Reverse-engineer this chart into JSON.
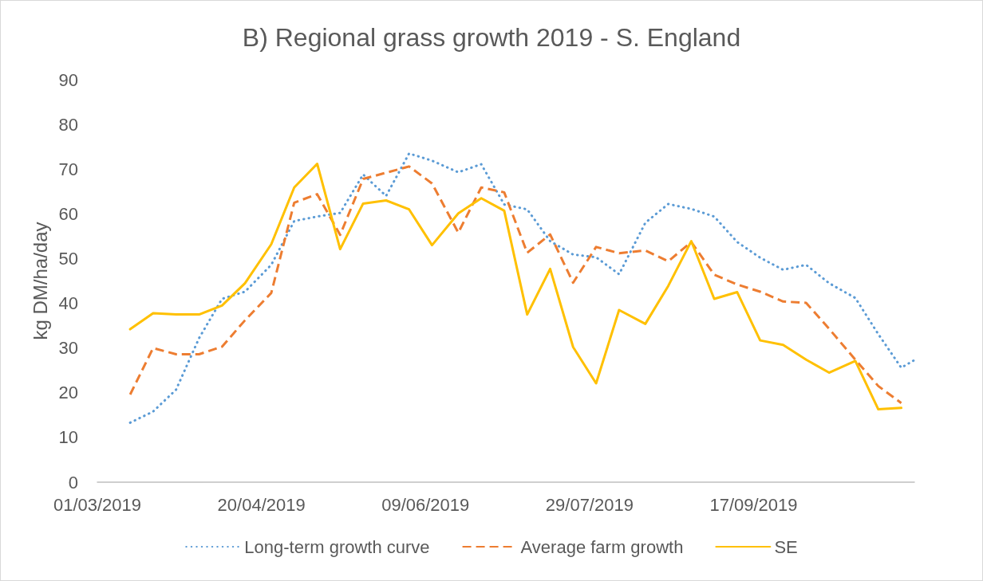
{
  "chart_data": {
    "type": "line",
    "title": "B) Regional grass growth 2019 - S. England",
    "ylabel": "kg DM/ha/day",
    "x": [
      "2019-03-11",
      "2019-03-18",
      "2019-03-25",
      "2019-04-01",
      "2019-04-08",
      "2019-04-15",
      "2019-04-23",
      "2019-04-30",
      "2019-05-07",
      "2019-05-14",
      "2019-05-21",
      "2019-05-28",
      "2019-06-04",
      "2019-06-11",
      "2019-06-19",
      "2019-06-26",
      "2019-07-03",
      "2019-07-10",
      "2019-07-17",
      "2019-07-24",
      "2019-07-31",
      "2019-08-07",
      "2019-08-15",
      "2019-08-22",
      "2019-08-29",
      "2019-09-05",
      "2019-09-12",
      "2019-09-19",
      "2019-09-26",
      "2019-10-03",
      "2019-10-10",
      "2019-10-18",
      "2019-10-25",
      "2019-11-01"
    ],
    "series": [
      {
        "name": "Long-term growth curve",
        "color": "#5b9bd5",
        "line_style": "dotted",
        "x": [
          "2019-03-11",
          "2019-03-18",
          "2019-03-25",
          "2019-04-01",
          "2019-04-08",
          "2019-04-15",
          "2019-04-23",
          "2019-04-30",
          "2019-05-07",
          "2019-05-14",
          "2019-05-21",
          "2019-05-28",
          "2019-06-04",
          "2019-06-11",
          "2019-06-19",
          "2019-06-26",
          "2019-07-03",
          "2019-07-10",
          "2019-07-17",
          "2019-07-24",
          "2019-07-31",
          "2019-08-07",
          "2019-08-15",
          "2019-08-22",
          "2019-08-29",
          "2019-09-05",
          "2019-09-12",
          "2019-09-19",
          "2019-09-26",
          "2019-10-03",
          "2019-10-10",
          "2019-10-18",
          "2019-10-25",
          "2019-11-01",
          "2019-11-05"
        ],
        "values": [
          13.3,
          15.8,
          20.7,
          32.2,
          41.0,
          42.6,
          48.6,
          58.4,
          59.4,
          60.2,
          68.8,
          64.0,
          73.5,
          71.9,
          69.3,
          71.1,
          62.1,
          61.0,
          53.9,
          50.9,
          50.3,
          46.5,
          58.0,
          62.2,
          61.1,
          59.4,
          53.7,
          50.2,
          47.5,
          48.6,
          44.5,
          41.2,
          33.1,
          25.6,
          27.3
        ]
      },
      {
        "name": "Average farm growth",
        "color": "#ed7d31",
        "line_style": "dashed",
        "values": [
          19.6,
          30.0,
          28.6,
          28.6,
          30.3,
          36.2,
          42.3,
          62.5,
          64.4,
          55.3,
          67.8,
          69.2,
          70.6,
          66.8,
          55.8,
          65.9,
          64.8,
          51.3,
          55.4,
          44.6,
          52.6,
          51.2,
          51.8,
          49.4,
          53.7,
          46.4,
          44.2,
          42.6,
          40.4,
          40.1,
          34.3,
          27.4,
          21.5,
          17.7
        ]
      },
      {
        "name": "SE",
        "color": "#ffc000",
        "line_style": "solid",
        "values": [
          34.2,
          37.8,
          37.5,
          37.5,
          39.5,
          44.5,
          53.2,
          65.9,
          71.2,
          52.1,
          62.3,
          63.0,
          61.0,
          53.0,
          60.1,
          63.5,
          60.7,
          37.5,
          47.7,
          30.2,
          22.1,
          38.5,
          35.4,
          43.9,
          53.9,
          41.0,
          42.5,
          31.7,
          30.7,
          27.4,
          24.5,
          27.1,
          16.3,
          16.6
        ]
      }
    ],
    "xlim": [
      "2019-03-01",
      "2019-11-05"
    ],
    "xticks": [
      {
        "value": "2019-03-01",
        "label": "01/03/2019"
      },
      {
        "value": "2019-04-20",
        "label": "20/04/2019"
      },
      {
        "value": "2019-06-09",
        "label": "09/06/2019"
      },
      {
        "value": "2019-07-29",
        "label": "29/07/2019"
      },
      {
        "value": "2019-09-17",
        "label": "17/09/2019"
      }
    ],
    "ylim": [
      0,
      90
    ],
    "yticks": [
      0,
      10,
      20,
      30,
      40,
      50,
      60,
      70,
      80,
      90
    ],
    "grid": false,
    "legend": "bottom",
    "marker": "none"
  }
}
